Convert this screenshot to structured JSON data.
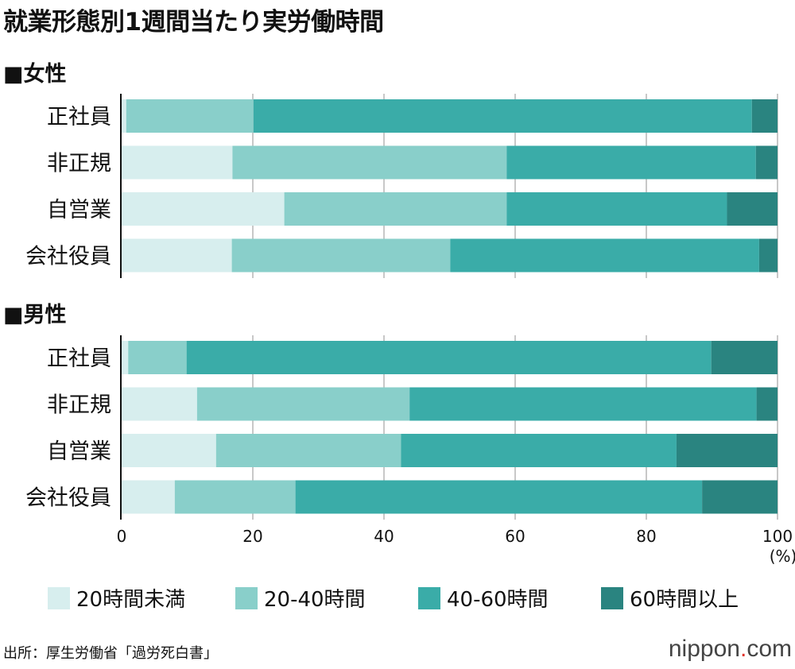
{
  "title": "就業形態別1週間当たり実労働時間",
  "source": "出所：厚生労働省「過労死白書」",
  "logo": {
    "name": "nippon",
    "dot": ".",
    "suffix": "com"
  },
  "colors": {
    "lt20": "#d7eeee",
    "20_40": "#89cfca",
    "40_60": "#3aaca8",
    "gt60": "#2a8480"
  },
  "chart_data": {
    "type": "bar",
    "orientation": "horizontal",
    "stacked": true,
    "xlim": [
      0,
      100
    ],
    "xticks": [
      "0",
      "20",
      "40",
      "60",
      "80",
      "100"
    ],
    "xunit": "(%)",
    "grid": true,
    "legend_position": "bottom",
    "series_names": [
      "20時間未満",
      "20-40時間",
      "40-60時間",
      "60時間以上"
    ],
    "groups": [
      {
        "label": "■女性",
        "categories": [
          "正社員",
          "非正規",
          "自営業",
          "会社役員"
        ],
        "values": [
          [
            0.7,
            19.4,
            76.0,
            3.9
          ],
          [
            16.9,
            41.8,
            38.0,
            3.3
          ],
          [
            24.8,
            33.9,
            33.6,
            7.7
          ],
          [
            16.8,
            33.3,
            47.1,
            2.8
          ]
        ]
      },
      {
        "label": "■男性",
        "categories": [
          "正社員",
          "非正規",
          "自営業",
          "会社役員"
        ],
        "values": [
          [
            1.0,
            8.9,
            80.0,
            10.1
          ],
          [
            11.5,
            32.4,
            52.9,
            3.2
          ],
          [
            14.4,
            28.2,
            42.0,
            15.4
          ],
          [
            8.1,
            18.4,
            62.0,
            11.5
          ]
        ]
      }
    ]
  }
}
